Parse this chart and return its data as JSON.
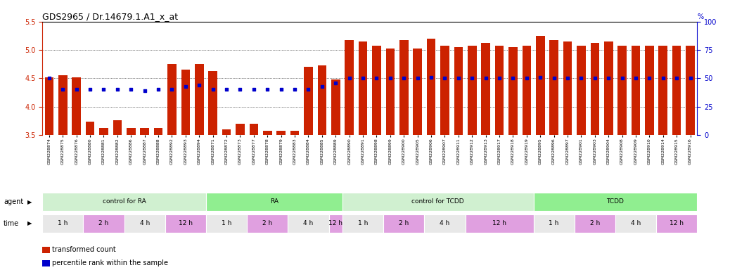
{
  "title": "GDS2965 / Dr.14679.1.A1_x_at",
  "bar_values": [
    4.52,
    4.55,
    4.52,
    3.73,
    3.63,
    3.76,
    3.63,
    3.63,
    3.63,
    4.75,
    4.65,
    4.75,
    4.63,
    3.6,
    3.7,
    3.7,
    3.57,
    3.58,
    3.57,
    4.7,
    4.73,
    4.48,
    5.18,
    5.15,
    5.07,
    5.03,
    5.17,
    5.03,
    5.2,
    5.07,
    5.05,
    5.07,
    5.12,
    5.08,
    5.05,
    5.08,
    5.25,
    5.17,
    5.15,
    5.08,
    5.12,
    5.15,
    5.08,
    5.07,
    5.08,
    5.07,
    5.08,
    5.07
  ],
  "percentile_values": [
    4.5,
    4.3,
    4.3,
    4.3,
    4.3,
    4.3,
    4.3,
    4.28,
    4.3,
    4.3,
    4.35,
    4.38,
    4.3,
    4.3,
    4.3,
    4.3,
    4.3,
    4.3,
    4.3,
    4.3,
    4.35,
    4.42,
    4.5,
    4.5,
    4.5,
    4.5,
    4.5,
    4.5,
    4.52,
    4.5,
    4.5,
    4.5,
    4.5,
    4.5,
    4.5,
    4.5,
    4.52,
    4.5,
    4.5,
    4.5,
    4.5,
    4.5,
    4.5,
    4.5,
    4.5,
    4.5,
    4.5,
    4.5
  ],
  "sample_ids": [
    "GSM228874",
    "GSM228875",
    "GSM228876",
    "GSM228880",
    "GSM228881",
    "GSM228882",
    "GSM228886",
    "GSM228887",
    "GSM228888",
    "GSM228892",
    "GSM228893",
    "GSM228894",
    "GSM228871",
    "GSM228872",
    "GSM228873",
    "GSM228877",
    "GSM228878",
    "GSM228879",
    "GSM228883",
    "GSM228884",
    "GSM228885",
    "GSM228889",
    "GSM228890",
    "GSM228891",
    "GSM228898",
    "GSM228899",
    "GSM228900",
    "GSM228905",
    "GSM228906",
    "GSM228907",
    "GSM228911",
    "GSM228912",
    "GSM228913",
    "GSM228917",
    "GSM228918",
    "GSM228919",
    "GSM228895",
    "GSM228896",
    "GSM228897",
    "GSM228901",
    "GSM228903",
    "GSM228904",
    "GSM228908",
    "GSM228909",
    "GSM228910",
    "GSM228914",
    "GSM228915",
    "GSM228916"
  ],
  "agent_groups": [
    {
      "label": "control for RA",
      "start": 0,
      "end": 12,
      "color": "#d0f0d0"
    },
    {
      "label": "RA",
      "start": 12,
      "end": 22,
      "color": "#90ee90"
    },
    {
      "label": "control for TCDD",
      "start": 22,
      "end": 36,
      "color": "#d0f0d0"
    },
    {
      "label": "TCDD",
      "start": 36,
      "end": 48,
      "color": "#90ee90"
    }
  ],
  "time_groups": [
    {
      "label": "1 h",
      "start": 0,
      "end": 3,
      "color": "#e8e8e8"
    },
    {
      "label": "2 h",
      "start": 3,
      "end": 6,
      "color": "#e0a0e0"
    },
    {
      "label": "4 h",
      "start": 6,
      "end": 9,
      "color": "#e8e8e8"
    },
    {
      "label": "12 h",
      "start": 9,
      "end": 12,
      "color": "#e0a0e0"
    },
    {
      "label": "1 h",
      "start": 12,
      "end": 15,
      "color": "#e8e8e8"
    },
    {
      "label": "2 h",
      "start": 15,
      "end": 18,
      "color": "#e0a0e0"
    },
    {
      "label": "4 h",
      "start": 18,
      "end": 21,
      "color": "#e8e8e8"
    },
    {
      "label": "12 h",
      "start": 21,
      "end": 22,
      "color": "#e0a0e0"
    },
    {
      "label": "1 h",
      "start": 22,
      "end": 25,
      "color": "#e8e8e8"
    },
    {
      "label": "2 h",
      "start": 25,
      "end": 28,
      "color": "#e0a0e0"
    },
    {
      "label": "4 h",
      "start": 28,
      "end": 31,
      "color": "#e8e8e8"
    },
    {
      "label": "12 h",
      "start": 31,
      "end": 36,
      "color": "#e0a0e0"
    },
    {
      "label": "1 h",
      "start": 36,
      "end": 39,
      "color": "#e8e8e8"
    },
    {
      "label": "2 h",
      "start": 39,
      "end": 42,
      "color": "#e0a0e0"
    },
    {
      "label": "4 h",
      "start": 42,
      "end": 45,
      "color": "#e8e8e8"
    },
    {
      "label": "12 h",
      "start": 45,
      "end": 48,
      "color": "#e0a0e0"
    }
  ],
  "ylim_left": [
    3.5,
    5.5
  ],
  "ylim_right": [
    0,
    100
  ],
  "yticks_left": [
    3.5,
    4.0,
    4.5,
    5.0,
    5.5
  ],
  "yticks_right": [
    0,
    25,
    50,
    75,
    100
  ],
  "bar_color": "#cc2200",
  "dot_color": "#0000cc",
  "hline_values": [
    4.0,
    4.5,
    5.0
  ]
}
